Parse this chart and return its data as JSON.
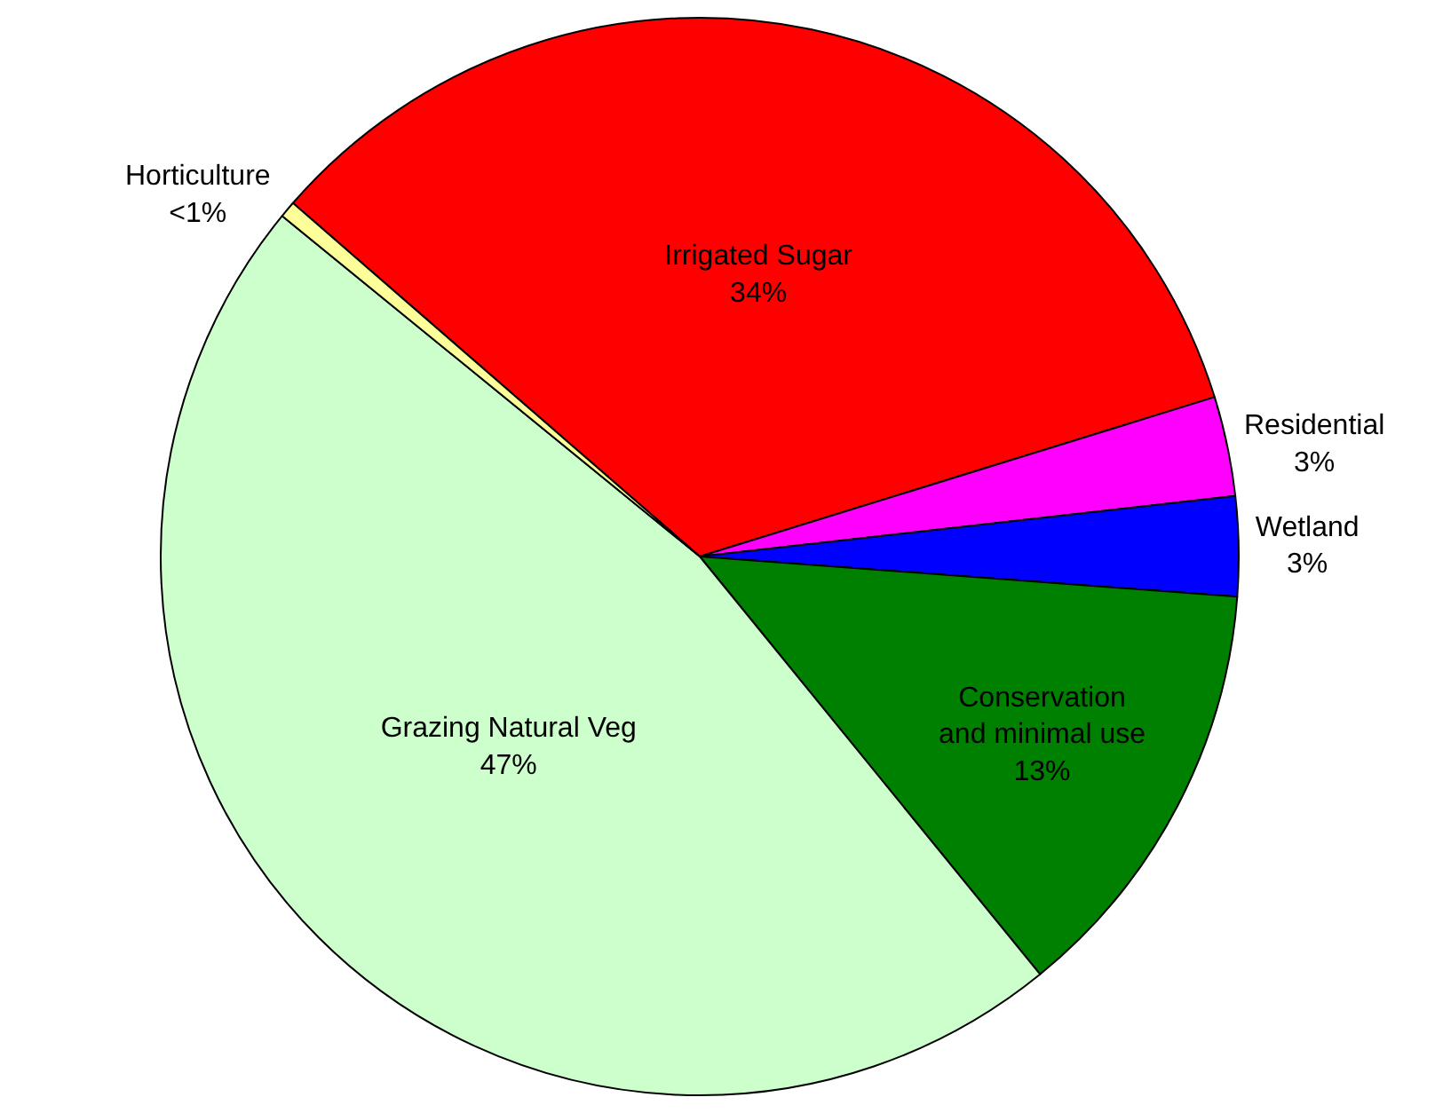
{
  "chart_data": {
    "type": "pie",
    "categories": [
      "Irrigated Sugar",
      "Residential",
      "Wetland",
      "Conservation\nand minimal use",
      "Grazing Natural Veg",
      "Horticulture"
    ],
    "values": [
      34,
      3,
      3,
      13,
      47,
      0.5
    ],
    "value_labels": [
      "34%",
      "3%",
      "3%",
      "13%",
      "47%",
      "<1%"
    ],
    "colors": [
      "#ff0000",
      "#ff00ff",
      "#0000ff",
      "#008000",
      "#ccffcc",
      "#ffff99"
    ],
    "legend": false
  }
}
